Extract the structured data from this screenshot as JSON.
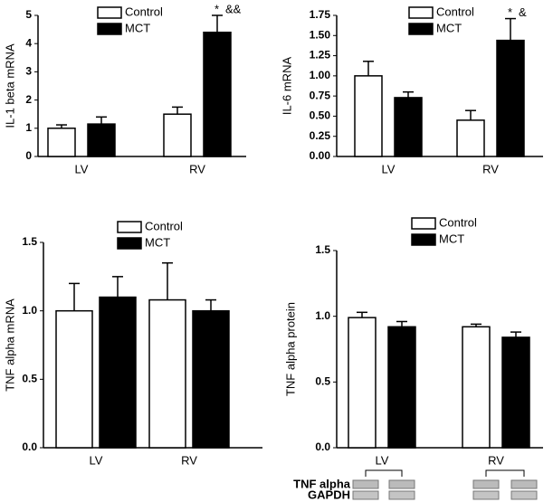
{
  "chart_data": [
    {
      "type": "bar",
      "y_label": "IL-1 beta mRNA",
      "categories": [
        "LV",
        "RV"
      ],
      "series": [
        {
          "name": "Control",
          "color": "#ffffff",
          "values": [
            1.0,
            1.5
          ],
          "errors": [
            0.12,
            0.25
          ]
        },
        {
          "name": "MCT",
          "color": "#000000",
          "values": [
            1.15,
            4.4
          ],
          "errors": [
            0.25,
            0.6
          ]
        }
      ],
      "annotations": [
        "*",
        "&&"
      ],
      "ylim": [
        0,
        5
      ],
      "yticks": [
        0,
        1,
        2,
        3,
        4,
        5
      ]
    },
    {
      "type": "bar",
      "y_label": "IL-6 mRNA",
      "categories": [
        "LV",
        "RV"
      ],
      "series": [
        {
          "name": "Control",
          "color": "#ffffff",
          "values": [
            1.0,
            0.45
          ],
          "errors": [
            0.18,
            0.12
          ]
        },
        {
          "name": "MCT",
          "color": "#000000",
          "values": [
            0.73,
            1.44
          ],
          "errors": [
            0.07,
            0.27
          ]
        }
      ],
      "annotations": [
        "*",
        "&"
      ],
      "ylim": [
        0,
        1.75
      ],
      "yticks": [
        {
          "value": 0,
          "label": "0.00"
        },
        {
          "value": 0.25,
          "label": "0.25"
        },
        {
          "value": 0.5,
          "label": "0.50"
        },
        {
          "value": 0.75,
          "label": "0.75"
        },
        {
          "value": 1,
          "label": "1.00"
        },
        {
          "value": 1.25,
          "label": "1.25"
        },
        {
          "value": 1.5,
          "label": "1.50"
        },
        {
          "value": 1.75,
          "label": "1.75"
        }
      ]
    },
    {
      "type": "bar",
      "y_label": "TNF alpha mRNA",
      "categories": [
        "LV",
        "RV"
      ],
      "series": [
        {
          "name": "Control",
          "color": "#ffffff",
          "values": [
            1.0,
            1.08
          ],
          "errors": [
            0.2,
            0.27
          ]
        },
        {
          "name": "MCT",
          "color": "#000000",
          "values": [
            1.1,
            1.0
          ],
          "errors": [
            0.15,
            0.08
          ]
        }
      ],
      "ylim": [
        0,
        1.5
      ],
      "yticks": [
        {
          "value": 0,
          "label": "0.0"
        },
        {
          "value": 0.5,
          "label": "0.5"
        },
        {
          "value": 1,
          "label": "1.0"
        },
        {
          "value": 1.5,
          "label": "1.5"
        }
      ]
    },
    {
      "type": "bar",
      "y_label": "TNF alpha protein",
      "categories": [
        "LV",
        "RV"
      ],
      "series": [
        {
          "name": "Control",
          "color": "#ffffff",
          "values": [
            0.99,
            0.92
          ],
          "errors": [
            0.04,
            0.02
          ]
        },
        {
          "name": "MCT",
          "color": "#000000",
          "values": [
            0.92,
            0.84
          ],
          "errors": [
            0.04,
            0.04
          ]
        }
      ],
      "blot_labels": [
        "TNF alpha",
        "GAPDH"
      ],
      "ylim": [
        0,
        1.5
      ],
      "yticks": [
        {
          "value": 0,
          "label": "0.0"
        },
        {
          "value": 0.5,
          "label": "0.5"
        },
        {
          "value": 1,
          "label": "1.0"
        },
        {
          "value": 1.5,
          "label": "1.5"
        }
      ]
    }
  ]
}
